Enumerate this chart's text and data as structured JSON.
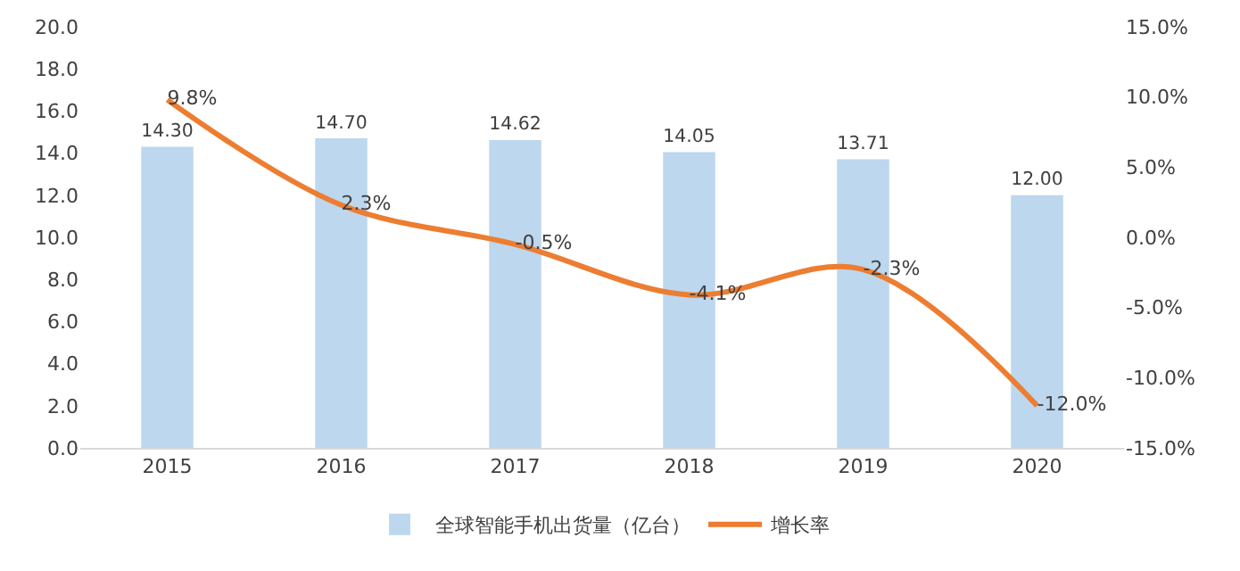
{
  "chart_data": {
    "type": "bar",
    "categories": [
      "2015",
      "2016",
      "2017",
      "2018",
      "2019",
      "2020"
    ],
    "series": [
      {
        "name": "全球智能手机出货量（亿台）",
        "color": "#bdd7ee",
        "values": [
          14.3,
          14.7,
          14.62,
          14.05,
          13.71,
          12.0
        ],
        "value_labels": [
          "14.30",
          "14.70",
          "14.62",
          "14.05",
          "13.71",
          "12.00"
        ]
      },
      {
        "name": "增长率",
        "type": "line",
        "axis": "y2",
        "color": "#ed7d31",
        "marker": "none",
        "line_style": "solid",
        "values": [
          9.8,
          2.3,
          -0.5,
          -4.1,
          -2.3,
          -12.0
        ],
        "value_labels": [
          "9.8%",
          "2.3%",
          "-0.5%",
          "-4.1%",
          "-2.3%",
          "-12.0%"
        ]
      }
    ],
    "ylim": [
      0,
      20
    ],
    "yticks": [
      {
        "value": 0,
        "label": "0.0"
      },
      {
        "value": 2,
        "label": "2.0"
      },
      {
        "value": 4,
        "label": "4.0"
      },
      {
        "value": 6,
        "label": "6.0"
      },
      {
        "value": 8,
        "label": "8.0"
      },
      {
        "value": 10,
        "label": "10.0"
      },
      {
        "value": 12,
        "label": "12.0"
      },
      {
        "value": 14,
        "label": "14.0"
      },
      {
        "value": 16,
        "label": "16.0"
      },
      {
        "value": 18,
        "label": "18.0"
      },
      {
        "value": 20,
        "label": "20.0"
      }
    ],
    "y2lim": [
      -15,
      15
    ],
    "y2ticks": [
      {
        "value": -15,
        "label": "-15.0%"
      },
      {
        "value": -10,
        "label": "-10.0%"
      },
      {
        "value": -5,
        "label": "-5.0%"
      },
      {
        "value": 0,
        "label": "0.0%"
      },
      {
        "value": 5,
        "label": "5.0%"
      },
      {
        "value": 10,
        "label": "10.0%"
      },
      {
        "value": 15,
        "label": "15.0%"
      }
    ],
    "grid": false,
    "legend": "bottom"
  }
}
